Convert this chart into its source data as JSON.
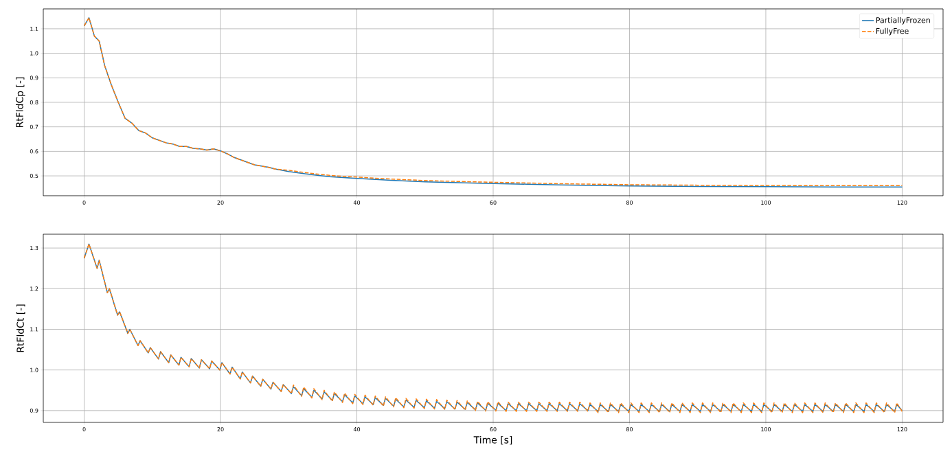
{
  "chart_data": [
    {
      "type": "line",
      "ylabel": "RtFldCp [-]",
      "grid": true,
      "legend": "top right",
      "marker": "none",
      "xlim": [
        -6,
        126
      ],
      "ylim": [
        0.419,
        1.181
      ],
      "xticks": [
        0,
        20,
        40,
        60,
        80,
        100,
        120
      ],
      "yticks": [
        0.5,
        0.6,
        0.7,
        0.8,
        0.9,
        {
          "value": 1,
          "label": "1.0"
        },
        1.1
      ],
      "x": [
        0,
        0.7,
        1.5,
        2.2,
        3,
        4,
        5,
        6,
        7,
        8,
        9,
        10,
        11,
        12,
        13,
        14,
        15,
        16,
        17,
        18,
        19,
        20,
        21,
        22,
        23,
        24,
        25,
        26,
        27,
        28,
        30,
        32,
        34,
        36,
        38,
        40,
        45,
        50,
        55,
        60,
        65,
        70,
        75,
        80,
        90,
        100,
        110,
        120
      ],
      "series": [
        {
          "name": "PartiallyFrozen",
          "color": "#1f77b4",
          "line_style": "solid",
          "values": [
            1.112,
            1.145,
            1.07,
            1.05,
            0.95,
            0.87,
            0.8,
            0.735,
            0.715,
            0.685,
            0.675,
            0.655,
            0.645,
            0.635,
            0.63,
            0.62,
            0.62,
            0.612,
            0.61,
            0.605,
            0.61,
            0.602,
            0.59,
            0.575,
            0.565,
            0.555,
            0.545,
            0.54,
            0.535,
            0.528,
            0.518,
            0.51,
            0.503,
            0.497,
            0.493,
            0.49,
            0.482,
            0.476,
            0.472,
            0.469,
            0.466,
            0.463,
            0.461,
            0.459,
            0.457,
            0.456,
            0.455,
            0.455
          ]
        },
        {
          "name": "FullyFree",
          "color": "#ff7f0e",
          "line_style": "dashed",
          "values": [
            1.112,
            1.145,
            1.07,
            1.05,
            0.95,
            0.87,
            0.8,
            0.735,
            0.715,
            0.685,
            0.675,
            0.655,
            0.645,
            0.635,
            0.63,
            0.62,
            0.62,
            0.612,
            0.61,
            0.605,
            0.61,
            0.602,
            0.59,
            0.575,
            0.565,
            0.555,
            0.545,
            0.54,
            0.535,
            0.528,
            0.523,
            0.515,
            0.508,
            0.502,
            0.498,
            0.495,
            0.487,
            0.481,
            0.477,
            0.474,
            0.471,
            0.468,
            0.466,
            0.464,
            0.462,
            0.461,
            0.46,
            0.46
          ]
        }
      ]
    },
    {
      "type": "line",
      "xlabel": "Time [s]",
      "ylabel": "RtFldCt [-]",
      "grid": true,
      "marker": "none",
      "xlim": [
        -6,
        126
      ],
      "ylim": [
        0.871,
        1.334
      ],
      "xticks": [
        0,
        20,
        40,
        60,
        80,
        100,
        120
      ],
      "yticks": [
        0.9,
        {
          "value": 1,
          "label": "1.0"
        },
        1.1,
        1.2,
        1.3
      ],
      "x": [
        0,
        0.7,
        1.9,
        2.2,
        3.4,
        3.7,
        4.9,
        5.2,
        6.4,
        6.7,
        7.9,
        8.2,
        9.4,
        9.7,
        10.9,
        11.2,
        12.4,
        12.7,
        13.9,
        14.2,
        15.4,
        15.7,
        16.9,
        17.2,
        18.4,
        18.7,
        19.9,
        20.2,
        21.4,
        21.7,
        22.9,
        23.2,
        24.4,
        24.7,
        25.9,
        26.2,
        27.4,
        27.7,
        28.9,
        29.2,
        30.4,
        30.7,
        31.9,
        32.2,
        33.4,
        33.7,
        34.9,
        35.2,
        36.4,
        36.7,
        37.9,
        38.2,
        39.4,
        39.7,
        40.9,
        41.2,
        42.4,
        42.7,
        43.9,
        44.2,
        45.4,
        45.7,
        46.9,
        47.2,
        48.4,
        48.7,
        49.9,
        50.2,
        51.4,
        51.7,
        52.9,
        53.2,
        54.4,
        54.7,
        55.9,
        56.2,
        57.4,
        57.7,
        58.9,
        59.2,
        60.4,
        60.7,
        61.9,
        62.2,
        63.4,
        63.7,
        64.9,
        65.2,
        66.4,
        66.7,
        67.9,
        68.2,
        69.4,
        69.7,
        70.9,
        71.2,
        72.4,
        72.7,
        73.9,
        74.2,
        75.4,
        75.7,
        76.9,
        77.2,
        78.4,
        78.7,
        79.9,
        80.2,
        81.4,
        81.7,
        82.9,
        83.2,
        84.4,
        84.7,
        85.9,
        86.2,
        87.4,
        87.7,
        88.9,
        89.2,
        90.4,
        90.7,
        91.9,
        92.2,
        93.4,
        93.7,
        94.9,
        95.2,
        96.4,
        96.7,
        97.9,
        98.2,
        99.4,
        99.7,
        100.9,
        101.2,
        102.4,
        102.7,
        103.9,
        104.2,
        105.4,
        105.7,
        106.9,
        107.2,
        108.4,
        108.7,
        109.9,
        110.2,
        111.4,
        111.7,
        112.9,
        113.2,
        114.4,
        114.7,
        115.9,
        116.2,
        117.4,
        117.7,
        118.9,
        119.2,
        120
      ],
      "series": [
        {
          "color": "#1f77b4",
          "line_style": "solid",
          "values": [
            1.275,
            1.31,
            1.25,
            1.27,
            1.19,
            1.2,
            1.135,
            1.143,
            1.09,
            1.1,
            1.06,
            1.072,
            1.042,
            1.055,
            1.027,
            1.045,
            1.018,
            1.037,
            1.012,
            1.031,
            1.008,
            1.028,
            1.005,
            1.025,
            1.003,
            1.022,
            1.0,
            1.018,
            0.99,
            1.007,
            0.978,
            0.995,
            0.968,
            0.985,
            0.96,
            0.977,
            0.953,
            0.97,
            0.947,
            0.964,
            0.942,
            0.959,
            0.937,
            0.954,
            0.933,
            0.95,
            0.929,
            0.946,
            0.925,
            0.942,
            0.922,
            0.939,
            0.919,
            0.936,
            0.917,
            0.934,
            0.915,
            0.932,
            0.913,
            0.93,
            0.911,
            0.928,
            0.909,
            0.926,
            0.908,
            0.925,
            0.907,
            0.924,
            0.906,
            0.923,
            0.905,
            0.922,
            0.904,
            0.921,
            0.903,
            0.92,
            0.902,
            0.919,
            0.901,
            0.918,
            0.901,
            0.918,
            0.9,
            0.917,
            0.9,
            0.917,
            0.9,
            0.917,
            0.9,
            0.917,
            0.9,
            0.917,
            0.9,
            0.917,
            0.9,
            0.917,
            0.9,
            0.917,
            0.9,
            0.915,
            0.898,
            0.915,
            0.898,
            0.915,
            0.898,
            0.915,
            0.898,
            0.915,
            0.898,
            0.915,
            0.898,
            0.915,
            0.898,
            0.915,
            0.898,
            0.915,
            0.898,
            0.915,
            0.898,
            0.915,
            0.898,
            0.915,
            0.898,
            0.915,
            0.898,
            0.915,
            0.898,
            0.915,
            0.898,
            0.915,
            0.898,
            0.915,
            0.898,
            0.915,
            0.898,
            0.915,
            0.898,
            0.915,
            0.898,
            0.915,
            0.898,
            0.915,
            0.898,
            0.915,
            0.898,
            0.915,
            0.898,
            0.915,
            0.898,
            0.915,
            0.898,
            0.915,
            0.898,
            0.915,
            0.898,
            0.915,
            0.898,
            0.915,
            0.898,
            0.915,
            0.9
          ]
        },
        {
          "color": "#ff7f0e",
          "line_style": "dashed",
          "values": [
            1.275,
            1.31,
            1.25,
            1.27,
            1.19,
            1.2,
            1.135,
            1.143,
            1.09,
            1.1,
            1.06,
            1.072,
            1.042,
            1.055,
            1.027,
            1.045,
            1.018,
            1.037,
            1.012,
            1.031,
            1.008,
            1.028,
            1.005,
            1.025,
            1.003,
            1.022,
            1.0,
            1.018,
            0.99,
            1.007,
            0.978,
            0.995,
            0.968,
            0.985,
            0.96,
            0.977,
            0.953,
            0.97,
            0.947,
            0.964,
            0.942,
            0.963,
            0.935,
            0.958,
            0.931,
            0.954,
            0.927,
            0.95,
            0.923,
            0.946,
            0.92,
            0.943,
            0.917,
            0.94,
            0.915,
            0.938,
            0.913,
            0.936,
            0.911,
            0.934,
            0.909,
            0.932,
            0.907,
            0.93,
            0.906,
            0.929,
            0.905,
            0.928,
            0.904,
            0.927,
            0.903,
            0.926,
            0.902,
            0.925,
            0.901,
            0.924,
            0.9,
            0.923,
            0.899,
            0.922,
            0.899,
            0.922,
            0.898,
            0.921,
            0.898,
            0.921,
            0.898,
            0.921,
            0.898,
            0.921,
            0.898,
            0.921,
            0.898,
            0.921,
            0.898,
            0.921,
            0.898,
            0.921,
            0.898,
            0.919,
            0.895,
            0.919,
            0.895,
            0.919,
            0.895,
            0.919,
            0.895,
            0.919,
            0.895,
            0.919,
            0.895,
            0.919,
            0.895,
            0.919,
            0.895,
            0.919,
            0.895,
            0.919,
            0.895,
            0.919,
            0.895,
            0.919,
            0.895,
            0.919,
            0.895,
            0.919,
            0.895,
            0.919,
            0.895,
            0.919,
            0.895,
            0.919,
            0.895,
            0.919,
            0.895,
            0.919,
            0.895,
            0.919,
            0.895,
            0.919,
            0.895,
            0.919,
            0.895,
            0.919,
            0.895,
            0.919,
            0.895,
            0.919,
            0.895,
            0.919,
            0.895,
            0.919,
            0.895,
            0.919,
            0.895,
            0.919,
            0.895,
            0.919,
            0.895,
            0.919,
            0.898
          ]
        }
      ]
    }
  ]
}
